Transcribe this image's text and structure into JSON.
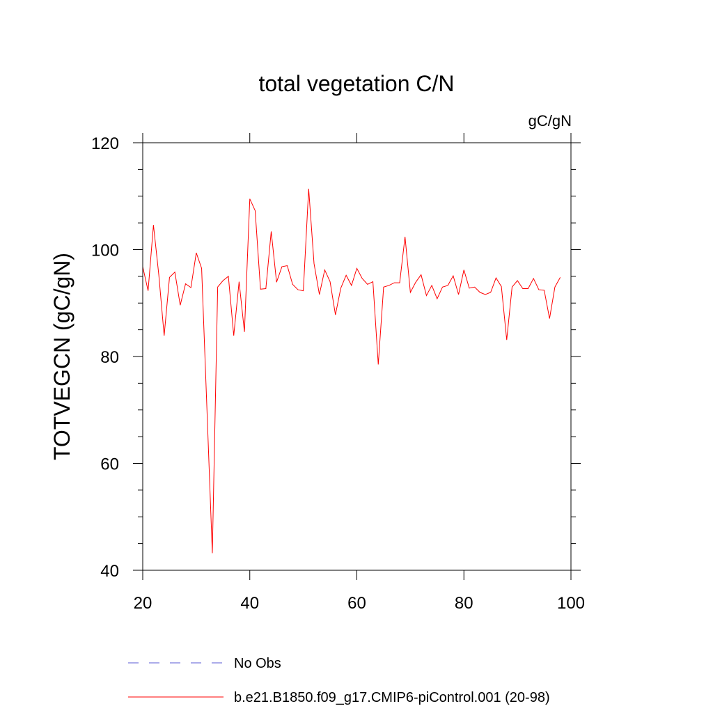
{
  "chart_data": {
    "type": "line",
    "title": "total vegetation C/N",
    "units": "gC/gN",
    "ylabel": "TOTVEGCN  (gC/gN)",
    "xlabel": "",
    "xlim": [
      20,
      100
    ],
    "ylim": [
      40,
      120
    ],
    "xticks": [
      20,
      40,
      60,
      80,
      100
    ],
    "yticks": [
      40,
      60,
      80,
      100,
      120
    ],
    "x_minor_step": 20,
    "y_minor_step": 5,
    "grid": false,
    "legend_position": "bottom",
    "series": [
      {
        "name": "No Obs",
        "color": "#5a5ad6",
        "dash": "dashed",
        "x": [],
        "y": []
      },
      {
        "name": "b.e21.B1850.f09_g17.CMIP6-piControl.001 (20-98)",
        "color": "#ff0000",
        "dash": "solid",
        "x": [
          20,
          21,
          22,
          23,
          24,
          25,
          26,
          27,
          28,
          29,
          30,
          31,
          32,
          33,
          34,
          35,
          36,
          37,
          38,
          39,
          40,
          41,
          42,
          43,
          44,
          45,
          46,
          47,
          48,
          49,
          50,
          51,
          52,
          53,
          54,
          55,
          56,
          57,
          58,
          59,
          60,
          61,
          62,
          63,
          64,
          65,
          66,
          67,
          68,
          69,
          70,
          71,
          72,
          73,
          74,
          75,
          76,
          77,
          78,
          79,
          80,
          81,
          82,
          83,
          84,
          85,
          86,
          87,
          88,
          89,
          90,
          91,
          92,
          93,
          94,
          95,
          96,
          97,
          98
        ],
        "y": [
          96.8,
          92.3,
          104.6,
          95.3,
          83.9,
          94.8,
          95.8,
          89.6,
          93.6,
          92.9,
          99.4,
          96.5,
          70.0,
          43.2,
          93.0,
          94.2,
          95.0,
          83.9,
          94.0,
          84.6,
          109.5,
          107.3,
          92.6,
          92.7,
          103.4,
          93.9,
          96.8,
          97.0,
          93.5,
          92.5,
          92.3,
          111.4,
          97.4,
          91.6,
          96.2,
          94.0,
          87.8,
          92.8,
          95.2,
          93.3,
          96.5,
          94.6,
          93.5,
          94.0,
          78.5,
          93.0,
          93.3,
          93.8,
          93.8,
          102.4,
          92.0,
          93.9,
          95.3,
          91.4,
          93.3,
          90.8,
          93.0,
          93.3,
          95.1,
          91.6,
          96.2,
          92.8,
          93.0,
          92.0,
          91.6,
          92.0,
          94.7,
          93.1,
          83.1,
          93.0,
          94.2,
          92.7,
          92.7,
          94.6,
          92.5,
          92.4,
          87.1,
          93.0,
          94.8
        ]
      }
    ]
  }
}
